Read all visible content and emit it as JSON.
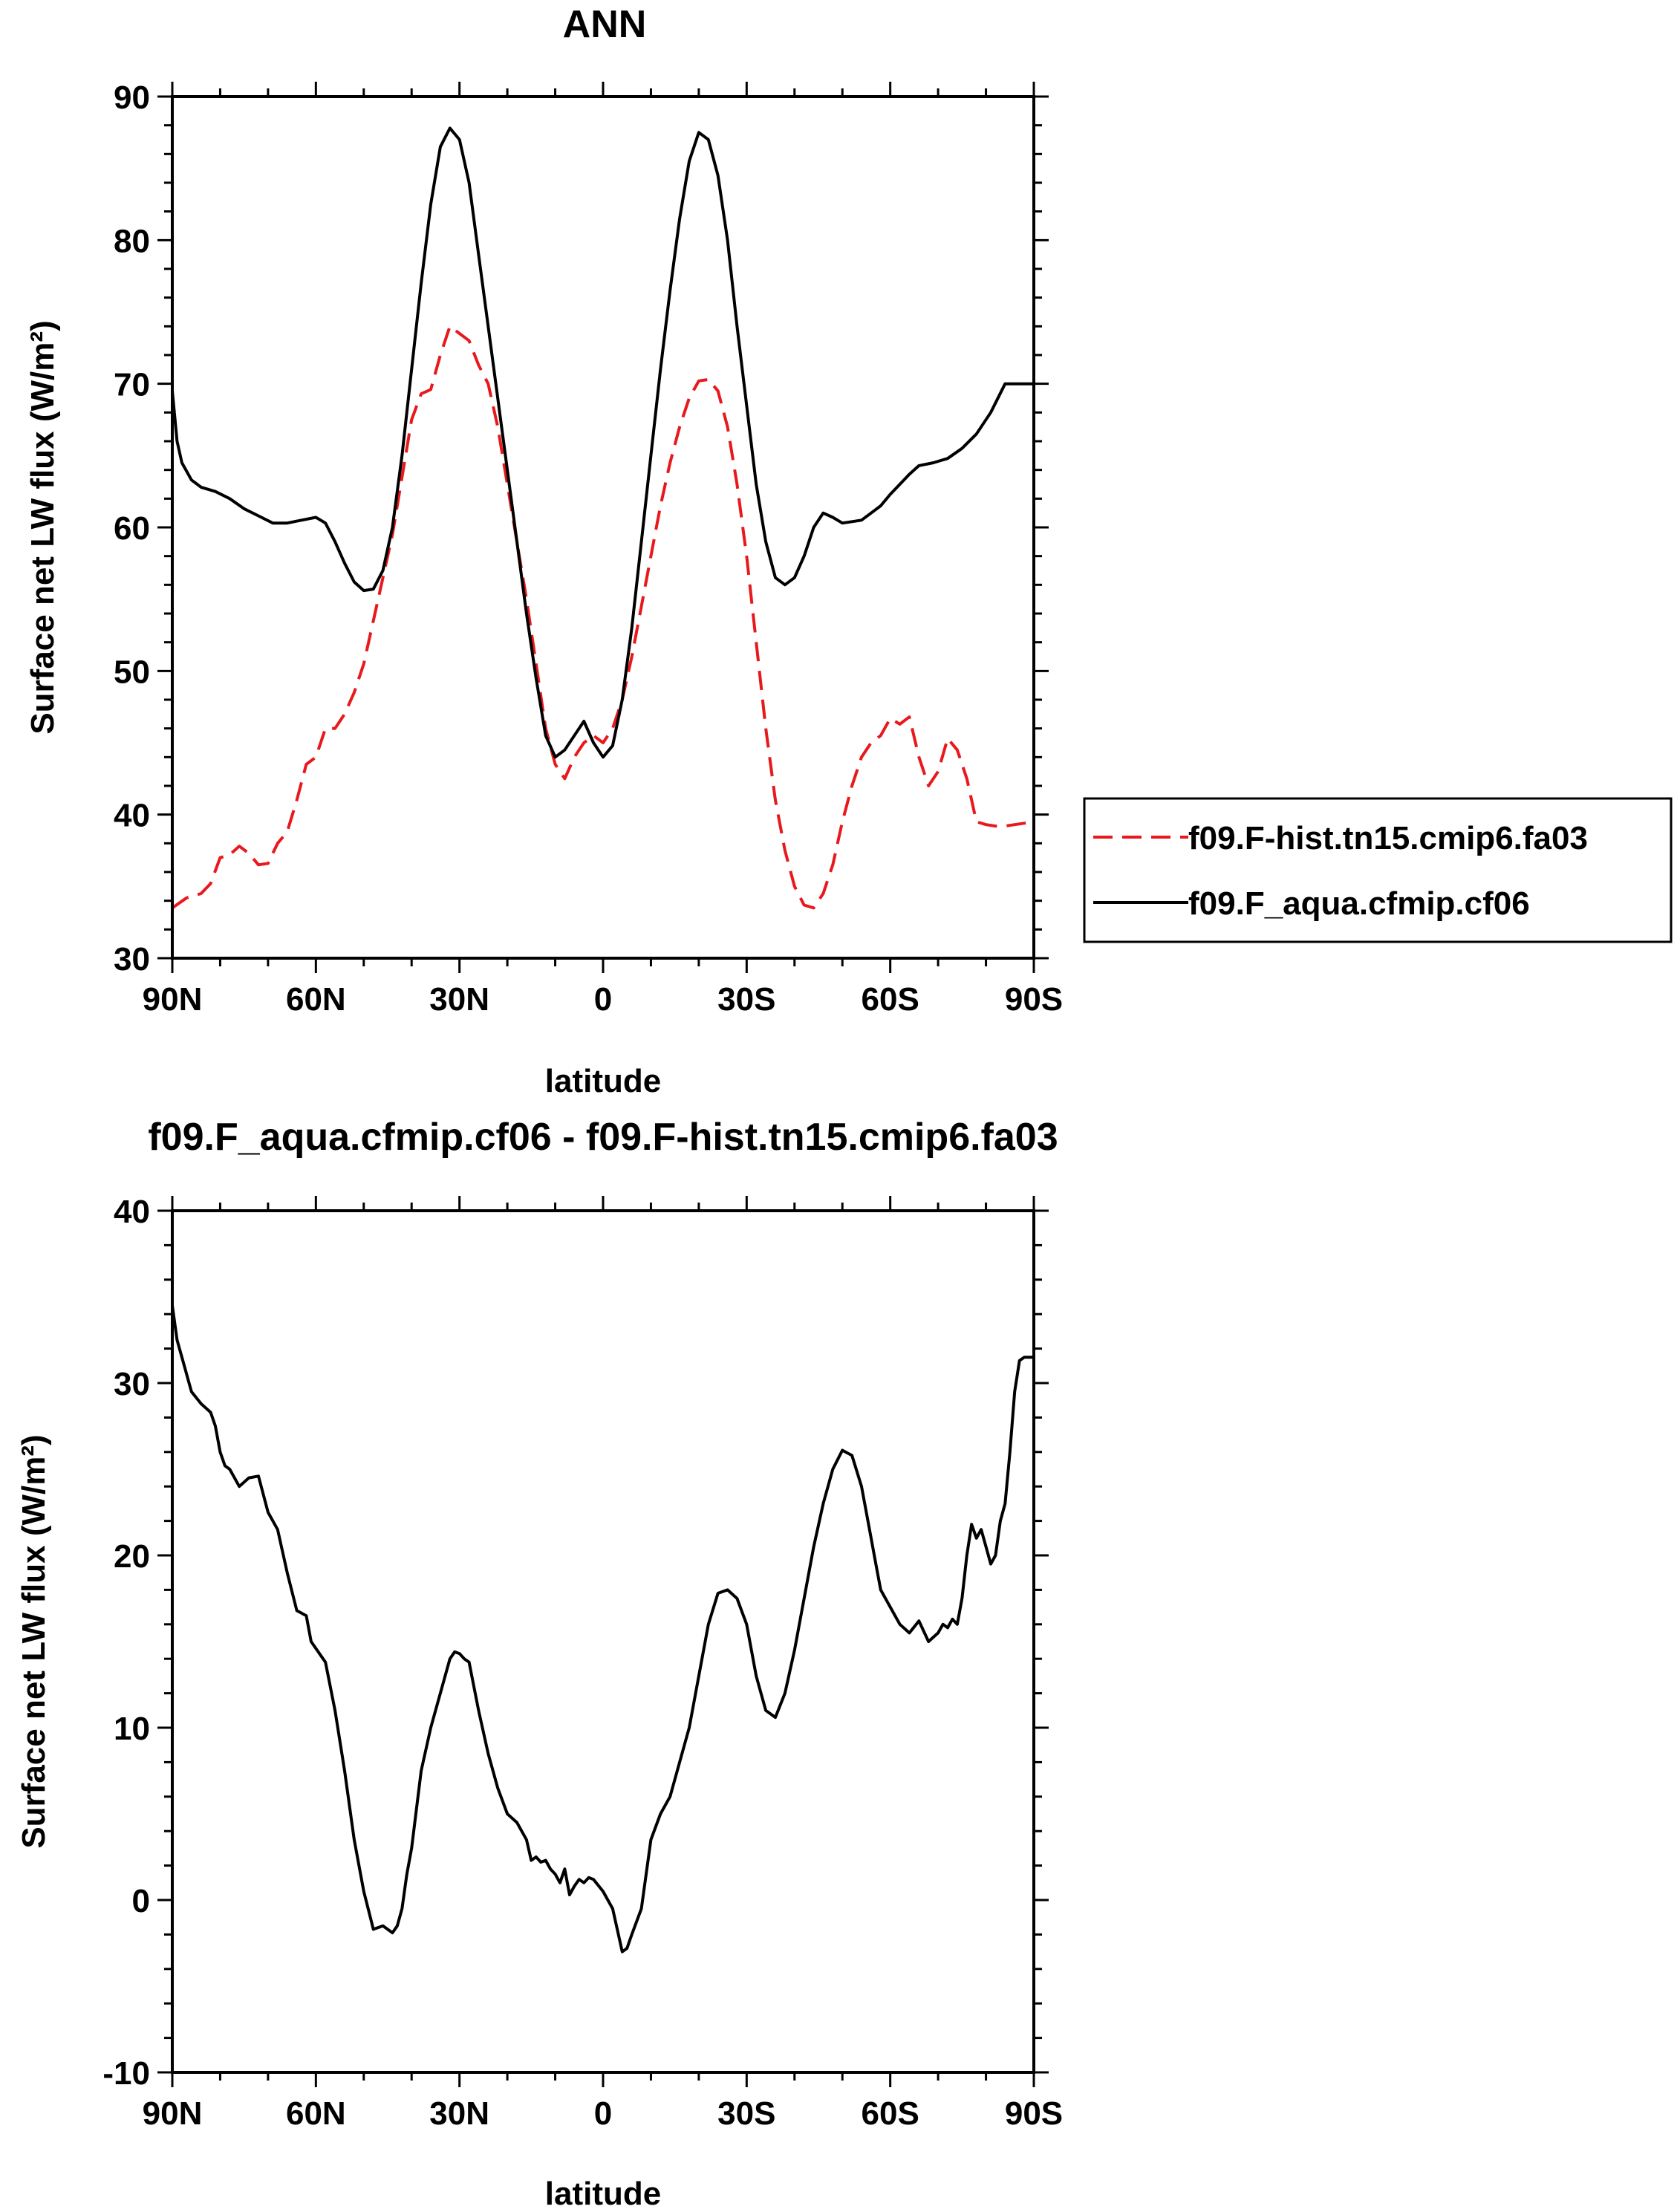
{
  "chart_data": [
    {
      "type": "line",
      "title": "ANN",
      "xlabel": "latitude",
      "ylabel": "Surface net LW flux (W/m²)",
      "xlim": [
        -90,
        90
      ],
      "ylim": [
        30,
        90
      ],
      "xticks": [
        -90,
        -60,
        -30,
        0,
        30,
        60,
        90
      ],
      "xtick_labels": [
        "90N",
        "60N",
        "30N",
        "0",
        "30S",
        "60S",
        "90S"
      ],
      "yticks": [
        30,
        40,
        50,
        60,
        70,
        80,
        90
      ],
      "ytick_labels": [
        "30",
        "40",
        "50",
        "60",
        "70",
        "80",
        "90"
      ],
      "grid": false,
      "legend_position": "right",
      "series": [
        {
          "name": "f09.F-hist.tn15.cmip6.fa03",
          "color": "#e8191c",
          "dash": "dashed",
          "x": [
            -90,
            -87,
            -84,
            -82,
            -80,
            -78,
            -76,
            -74,
            -72,
            -70,
            -68,
            -66,
            -64,
            -62,
            -60,
            -58,
            -56,
            -54,
            -52,
            -50,
            -48,
            -46,
            -44,
            -42,
            -40,
            -38,
            -36,
            -34,
            -32,
            -30,
            -28,
            -26,
            -24,
            -22,
            -20,
            -18,
            -16,
            -14,
            -12,
            -10,
            -8,
            -6,
            -4,
            -2,
            0,
            2,
            4,
            6,
            8,
            10,
            12,
            14,
            16,
            18,
            20,
            22,
            24,
            26,
            28,
            30,
            32,
            34,
            36,
            38,
            40,
            42,
            44,
            46,
            48,
            50,
            52,
            54,
            56,
            58,
            60,
            62,
            64,
            66,
            68,
            70,
            72,
            74,
            76,
            78,
            80,
            82,
            84,
            86,
            88,
            90
          ],
          "y": [
            33.5,
            34.2,
            34.5,
            35.2,
            37.0,
            37.2,
            37.8,
            37.3,
            36.5,
            36.6,
            38.0,
            38.8,
            41.0,
            43.5,
            44.0,
            46.0,
            46.0,
            47.0,
            48.5,
            50.5,
            53.5,
            56.5,
            59.5,
            63.5,
            67.5,
            69.3,
            69.6,
            72.0,
            74.0,
            73.5,
            73.0,
            71.3,
            70.0,
            67.0,
            63.0,
            59.0,
            55.0,
            50.5,
            46.0,
            43.5,
            42.5,
            44.0,
            45.0,
            45.5,
            45.0,
            46.0,
            48.0,
            51.0,
            54.5,
            58.0,
            61.5,
            64.5,
            67.0,
            69.0,
            70.2,
            70.3,
            69.5,
            67.0,
            63.0,
            58.0,
            52.0,
            46.0,
            41.0,
            37.5,
            35.0,
            33.7,
            33.5,
            34.5,
            36.5,
            39.5,
            42.0,
            44.0,
            45.0,
            45.5,
            46.7,
            46.3,
            46.8,
            44.0,
            42.0,
            43.0,
            45.3,
            44.5,
            42.5,
            39.5,
            39.3,
            39.2,
            39.2,
            39.3,
            39.4,
            39.5
          ]
        },
        {
          "name": "f09.F_aqua.cfmip.cf06",
          "color": "#000000",
          "dash": "solid",
          "x": [
            -90,
            -89,
            -88,
            -86,
            -84,
            -81,
            -78,
            -75,
            -72,
            -69,
            -66,
            -63,
            -60,
            -58,
            -56,
            -54,
            -52,
            -50,
            -48,
            -46,
            -44,
            -42,
            -40,
            -38,
            -36,
            -34,
            -32,
            -30,
            -28,
            -26,
            -24,
            -22,
            -20,
            -18,
            -16,
            -14,
            -12,
            -10,
            -8,
            -6,
            -4,
            -2,
            0,
            2,
            4,
            6,
            8,
            10,
            12,
            14,
            16,
            18,
            20,
            22,
            24,
            26,
            28,
            30,
            32,
            34,
            36,
            38,
            40,
            42,
            44,
            46,
            48,
            50,
            52,
            54,
            56,
            58,
            60,
            62,
            64,
            66,
            69,
            72,
            75,
            78,
            81,
            84,
            86,
            88,
            89,
            90
          ],
          "y": [
            69.5,
            66.0,
            64.5,
            63.3,
            62.8,
            62.5,
            62.0,
            61.3,
            60.8,
            60.3,
            60.3,
            60.5,
            60.7,
            60.3,
            59.0,
            57.5,
            56.2,
            55.6,
            55.7,
            57.0,
            60.0,
            65.0,
            71.0,
            77.0,
            82.5,
            86.5,
            87.8,
            87.0,
            84.0,
            79.0,
            74.0,
            69.0,
            64.0,
            59.0,
            54.0,
            49.5,
            45.5,
            44.0,
            44.5,
            45.5,
            46.5,
            45.0,
            44.0,
            44.8,
            48.0,
            53.0,
            59.0,
            65.0,
            71.0,
            76.5,
            81.5,
            85.5,
            87.5,
            87.0,
            84.5,
            80.0,
            74.0,
            68.5,
            63.0,
            59.0,
            56.5,
            56.0,
            56.5,
            58.0,
            60.0,
            61.0,
            60.7,
            60.3,
            60.4,
            60.5,
            61.0,
            61.5,
            62.3,
            63.0,
            63.7,
            64.3,
            64.5,
            64.8,
            65.5,
            66.5,
            68.0,
            70.0,
            70.0,
            70.0,
            70.0,
            70.0
          ]
        }
      ]
    },
    {
      "type": "line",
      "title": "f09.F_aqua.cfmip.cf06 - f09.F-hist.tn15.cmip6.fa03",
      "xlabel": "latitude",
      "ylabel": "Surface net LW flux (W/m²)",
      "xlim": [
        -90,
        90
      ],
      "ylim": [
        -10,
        40
      ],
      "xticks": [
        -90,
        -60,
        -30,
        0,
        30,
        60,
        90
      ],
      "xtick_labels": [
        "90N",
        "60N",
        "30N",
        "0",
        "30S",
        "60S",
        "90S"
      ],
      "yticks": [
        -10,
        0,
        10,
        20,
        30,
        40
      ],
      "ytick_labels": [
        "-10",
        "0",
        "10",
        "20",
        "30",
        "40"
      ],
      "grid": false,
      "series": [
        {
          "color": "#000000",
          "dash": "solid",
          "x": [
            -90,
            -89,
            -88,
            -86,
            -84,
            -82,
            -81,
            -80,
            -79,
            -78,
            -76,
            -74,
            -72,
            -70,
            -68,
            -66,
            -64,
            -62,
            -61,
            -60,
            -58,
            -56,
            -54,
            -52,
            -50,
            -48,
            -46,
            -44,
            -43,
            -42,
            -41,
            -40,
            -38,
            -36,
            -34,
            -32,
            -31,
            -30,
            -29,
            -28,
            -26,
            -24,
            -22,
            -20,
            -18,
            -16,
            -15,
            -14,
            -13,
            -12,
            -11,
            -10,
            -9,
            -8,
            -7,
            -6,
            -5,
            -4,
            -3,
            -2,
            0,
            2,
            4,
            5,
            6,
            8,
            10,
            12,
            14,
            16,
            18,
            20,
            22,
            24,
            26,
            28,
            30,
            32,
            34,
            36,
            38,
            40,
            42,
            44,
            46,
            48,
            50,
            52,
            54,
            56,
            57,
            58,
            60,
            62,
            64,
            66,
            68,
            70,
            71,
            72,
            73,
            74,
            75,
            76,
            77,
            78,
            79,
            80,
            81,
            82,
            83,
            84,
            85,
            86,
            87,
            88,
            89,
            90
          ],
          "y": [
            34.5,
            32.5,
            31.5,
            29.5,
            28.8,
            28.3,
            27.5,
            26.0,
            25.2,
            25.0,
            24.0,
            24.5,
            24.6,
            22.5,
            21.5,
            19.0,
            16.8,
            16.5,
            15.0,
            14.6,
            13.8,
            11.0,
            7.5,
            3.5,
            0.5,
            -1.7,
            -1.5,
            -1.9,
            -1.5,
            -0.5,
            1.5,
            3.0,
            7.5,
            10.0,
            12.0,
            14.0,
            14.4,
            14.3,
            14.0,
            13.8,
            11.0,
            8.5,
            6.5,
            5.0,
            4.5,
            3.5,
            2.3,
            2.5,
            2.2,
            2.3,
            1.8,
            1.5,
            1.0,
            1.8,
            0.3,
            0.8,
            1.2,
            1.0,
            1.3,
            1.2,
            0.5,
            -0.5,
            -3.0,
            -2.8,
            -2.0,
            -0.5,
            3.5,
            5.0,
            6.0,
            8.0,
            10.0,
            13.0,
            16.0,
            17.8,
            18.0,
            17.5,
            16.0,
            13.0,
            11.0,
            10.6,
            12.0,
            14.5,
            17.5,
            20.5,
            23.0,
            25.0,
            26.1,
            25.8,
            24.0,
            21.0,
            19.5,
            18.0,
            17.0,
            16.0,
            15.5,
            16.2,
            15.0,
            15.5,
            16.0,
            15.8,
            16.3,
            16.0,
            17.5,
            20.0,
            21.8,
            21.0,
            21.5,
            20.5,
            19.5,
            20.0,
            22.0,
            23.0,
            26.0,
            29.5,
            31.3,
            31.5,
            31.5,
            31.5
          ]
        }
      ]
    }
  ]
}
